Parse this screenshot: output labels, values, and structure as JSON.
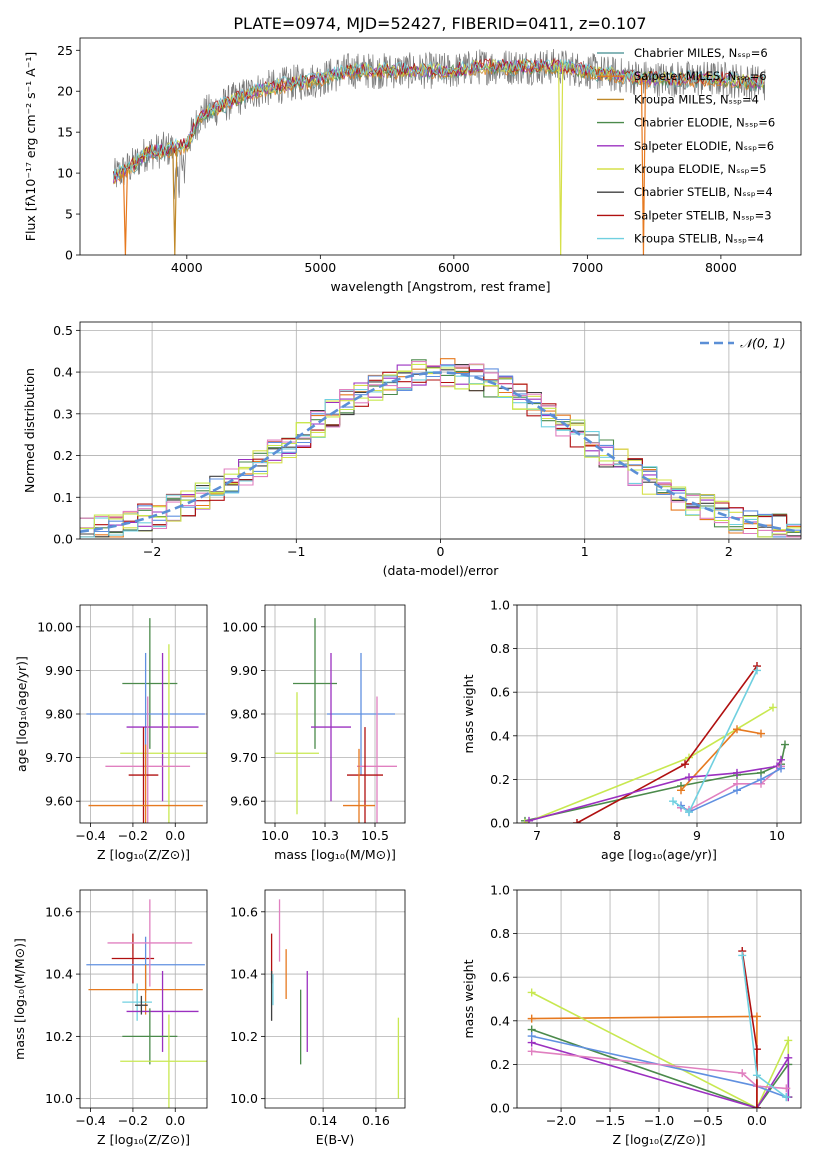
{
  "figure": {
    "title": "PLATE=0974, MJD=52427, FIBERID=0411, z=0.107"
  },
  "colors": [
    "#5f9ea0",
    "#e6791f",
    "#c0892a",
    "#4b8a4b",
    "#9b30c0",
    "#d6e04a",
    "#404040",
    "#b01010",
    "#70d0e0",
    "#6090e0",
    "#e080c0",
    "#c8e850"
  ],
  "chart_data": [
    {
      "id": "spectrum",
      "type": "line",
      "xlabel": "wavelength [Angstrom, rest frame]",
      "ylabel": "Flux [fλ10⁻¹⁷ erg cm⁻² s⁻¹ A⁻¹]",
      "xlim": [
        3200,
        8600
      ],
      "ylim": [
        0,
        26.5
      ],
      "xticks": [
        4000,
        5000,
        6000,
        7000,
        8000
      ],
      "yticks": [
        0,
        5,
        10,
        15,
        20,
        25
      ],
      "legend_position": "right",
      "legend": [
        {
          "label": "Chabrier MILES, Nₛₛₚ=6",
          "color": "#5f9ea0"
        },
        {
          "label": "Salpeter MILES, Nₛₛₚ=6",
          "color": "#e6791f"
        },
        {
          "label": "Kroupa MILES, Nₛₛₚ=4",
          "color": "#c0892a"
        },
        {
          "label": "Chabrier ELODIE, Nₛₛₚ=6",
          "color": "#4b8a4b"
        },
        {
          "label": "Salpeter ELODIE, Nₛₛₚ=6",
          "color": "#9b30c0"
        },
        {
          "label": "Kroupa ELODIE, Nₛₛₚ=5",
          "color": "#d6e04a"
        },
        {
          "label": "Chabrier STELIB, Nₛₛₚ=4",
          "color": "#404040"
        },
        {
          "label": "Salpeter STELIB, Nₛₛₚ=3",
          "color": "#b01010"
        },
        {
          "label": "Kroupa STELIB, Nₛₛₚ=4",
          "color": "#70d0e0"
        }
      ],
      "continuum": [
        [
          3450,
          9.5
        ],
        [
          3600,
          11
        ],
        [
          3700,
          12.5
        ],
        [
          3900,
          13
        ],
        [
          4000,
          13.5
        ],
        [
          4100,
          17
        ],
        [
          4300,
          18.5
        ],
        [
          4500,
          20
        ],
        [
          4800,
          21
        ],
        [
          5000,
          21.5
        ],
        [
          5200,
          22.5
        ],
        [
          5500,
          22.5
        ],
        [
          5800,
          22.5
        ],
        [
          6000,
          22.5
        ],
        [
          6200,
          23
        ],
        [
          6500,
          23
        ],
        [
          6800,
          23
        ],
        [
          7000,
          22.5
        ],
        [
          7200,
          22
        ],
        [
          7500,
          21.5
        ],
        [
          8000,
          21.5
        ],
        [
          8300,
          21
        ]
      ],
      "dips": [
        {
          "x": 3540,
          "y": 0,
          "series": 1
        },
        {
          "x": 3910,
          "y": 0,
          "series": 2
        },
        {
          "x": 6800,
          "y": 0,
          "series": 5
        },
        {
          "x": 7420,
          "y": 0,
          "series": 1
        }
      ]
    },
    {
      "id": "residuals",
      "type": "bar",
      "xlabel": "(data-model)/error",
      "ylabel": "Normed distribution",
      "xlim": [
        -2.5,
        2.5
      ],
      "ylim": [
        0,
        0.52
      ],
      "xticks": [
        -2,
        -1,
        0,
        1,
        2
      ],
      "yticks": [
        0.0,
        0.1,
        0.2,
        0.3,
        0.4,
        0.5
      ],
      "legend_position": "top-right",
      "legend": [
        {
          "label": "𝒩(0, 1)",
          "color": "#5b8fd6"
        }
      ],
      "bin_width": 0.1
    },
    {
      "id": "age-vs-Z",
      "type": "scatter",
      "xlabel": "Z [log₁₀(Z/Z⊙)]",
      "ylabel": "age  [log₁₀(age/yr)]",
      "xlim": [
        -0.45,
        0.15
      ],
      "ylim": [
        9.55,
        10.05
      ],
      "xticks": [
        -0.4,
        -0.2,
        0.0
      ],
      "yticks": [
        9.6,
        9.7,
        9.8,
        9.9,
        10.0
      ],
      "errorbars": [
        {
          "x": -0.12,
          "xerr": 0.13,
          "y": 9.87,
          "yerr": 0.15,
          "color": "#4b8a4b"
        },
        {
          "x": -0.14,
          "xerr": 0.28,
          "y": 9.8,
          "yerr": 0.14,
          "color": "#6090e0"
        },
        {
          "x": -0.06,
          "xerr": 0.17,
          "y": 9.77,
          "yerr": 0.17,
          "color": "#9b30c0"
        },
        {
          "x": -0.03,
          "xerr": 0.23,
          "y": 9.71,
          "yerr": 0.25,
          "color": "#c8e850"
        },
        {
          "x": -0.13,
          "xerr": 0.2,
          "y": 9.68,
          "yerr": 0.16,
          "color": "#e080c0"
        },
        {
          "x": -0.15,
          "xerr": 0.07,
          "y": 9.66,
          "yerr": 0.11,
          "color": "#b01010"
        },
        {
          "x": -0.14,
          "xerr": 0.27,
          "y": 9.59,
          "yerr": 0.14,
          "color": "#e6791f"
        }
      ]
    },
    {
      "id": "age-vs-mass",
      "type": "scatter",
      "xlabel": "mass [log₁₀(M/M⊙)]",
      "ylabel": "",
      "xlim": [
        9.95,
        10.65
      ],
      "ylim": [
        9.55,
        10.05
      ],
      "xticks": [
        10.0,
        10.25,
        10.5
      ],
      "yticks": [
        9.6,
        9.7,
        9.8,
        9.9,
        10.0
      ],
      "errorbars": [
        {
          "x": 10.2,
          "xerr": 0.11,
          "y": 9.87,
          "yerr": 0.15,
          "color": "#4b8a4b"
        },
        {
          "x": 10.43,
          "xerr": 0.17,
          "y": 9.8,
          "yerr": 0.14,
          "color": "#6090e0"
        },
        {
          "x": 10.28,
          "xerr": 0.1,
          "y": 9.77,
          "yerr": 0.17,
          "color": "#9b30c0"
        },
        {
          "x": 10.11,
          "xerr": 0.11,
          "y": 9.71,
          "yerr": 0.14,
          "color": "#c8e850"
        },
        {
          "x": 10.51,
          "xerr": 0.1,
          "y": 9.68,
          "yerr": 0.16,
          "color": "#e080c0"
        },
        {
          "x": 10.45,
          "xerr": 0.09,
          "y": 9.66,
          "yerr": 0.11,
          "color": "#b01010"
        },
        {
          "x": 10.42,
          "xerr": 0.08,
          "y": 9.59,
          "yerr": 0.13,
          "color": "#e6791f"
        }
      ]
    },
    {
      "id": "mass-weight-vs-age",
      "type": "line",
      "xlabel": "age  [log₁₀(age/yr)]",
      "ylabel": "mass weight",
      "xlim": [
        6.75,
        10.3
      ],
      "ylim": [
        0,
        1.0
      ],
      "xticks": [
        7,
        8,
        9,
        10
      ],
      "yticks": [
        0.0,
        0.2,
        0.4,
        0.6,
        0.8,
        1.0
      ],
      "series": [
        {
          "color": "#4b8a4b",
          "points": [
            [
              6.85,
              0.01
            ],
            [
              8.8,
              0.17
            ],
            [
              9.5,
              0.22
            ],
            [
              9.8,
              0.23
            ],
            [
              10.05,
              0.27
            ],
            [
              10.1,
              0.36
            ]
          ]
        },
        {
          "color": "#c8e850",
          "points": [
            [
              6.85,
              0.0
            ],
            [
              8.9,
              0.3
            ],
            [
              9.95,
              0.53
            ]
          ]
        },
        {
          "color": "#e6791f",
          "points": [
            [
              8.8,
              0.15
            ],
            [
              9.5,
              0.43
            ],
            [
              9.8,
              0.41
            ]
          ]
        },
        {
          "color": "#b01010",
          "points": [
            [
              7.5,
              0.0
            ],
            [
              8.85,
              0.27
            ],
            [
              9.75,
              0.72
            ]
          ]
        },
        {
          "color": "#9b30c0",
          "points": [
            [
              6.9,
              0.01
            ],
            [
              8.9,
              0.21
            ],
            [
              9.5,
              0.23
            ],
            [
              10.0,
              0.26
            ],
            [
              10.05,
              0.29
            ]
          ]
        },
        {
          "color": "#e080c0",
          "points": [
            [
              8.8,
              0.07
            ],
            [
              8.9,
              0.06
            ],
            [
              9.5,
              0.18
            ],
            [
              9.8,
              0.18
            ],
            [
              10.05,
              0.26
            ]
          ]
        },
        {
          "color": "#6090e0",
          "points": [
            [
              8.8,
              0.08
            ],
            [
              8.9,
              0.05
            ],
            [
              9.5,
              0.15
            ],
            [
              9.8,
              0.2
            ],
            [
              10.05,
              0.25
            ]
          ]
        },
        {
          "color": "#70d0e0",
          "points": [
            [
              8.7,
              0.1
            ],
            [
              8.9,
              0.05
            ],
            [
              9.75,
              0.7
            ]
          ]
        }
      ]
    },
    {
      "id": "mass-vs-Z",
      "type": "scatter",
      "xlabel": "Z [log₁₀(Z/Z⊙)]",
      "ylabel": "mass [log₁₀(M/M⊙)]",
      "xlim": [
        -0.45,
        0.15
      ],
      "ylim": [
        9.97,
        10.67
      ],
      "xticks": [
        -0.4,
        -0.2,
        0.0
      ],
      "yticks": [
        10.0,
        10.2,
        10.4,
        10.6
      ],
      "errorbars": [
        {
          "x": -0.2,
          "xerr": 0.1,
          "y": 10.45,
          "yerr": 0.08,
          "color": "#b01010"
        },
        {
          "x": -0.14,
          "xerr": 0.28,
          "y": 10.43,
          "yerr": 0.09,
          "color": "#6090e0"
        },
        {
          "x": -0.12,
          "xerr": 0.2,
          "y": 10.5,
          "yerr": 0.14,
          "color": "#e080c0"
        },
        {
          "x": -0.14,
          "xerr": 0.27,
          "y": 10.35,
          "yerr": 0.08,
          "color": "#e6791f"
        },
        {
          "x": -0.18,
          "xerr": 0.07,
          "y": 10.31,
          "yerr": 0.06,
          "color": "#70d0e0"
        },
        {
          "x": -0.06,
          "xerr": 0.17,
          "y": 10.28,
          "yerr": 0.13,
          "color": "#9b30c0"
        },
        {
          "x": -0.12,
          "xerr": 0.13,
          "y": 10.2,
          "yerr": 0.09,
          "color": "#4b8a4b"
        },
        {
          "x": -0.03,
          "xerr": 0.23,
          "y": 10.12,
          "yerr": 0.15,
          "color": "#c8e850"
        },
        {
          "x": -0.16,
          "xerr": 0.03,
          "y": 10.3,
          "yerr": 0.03,
          "color": "#404040"
        }
      ]
    },
    {
      "id": "mass-vs-ebv",
      "type": "scatter",
      "xlabel": "E(B-V)",
      "ylabel": "",
      "xlim": [
        0.118,
        0.171
      ],
      "ylim": [
        9.97,
        10.67
      ],
      "xticks": [
        0.14,
        0.16
      ],
      "yticks": [
        10.0,
        10.2,
        10.4,
        10.6
      ],
      "errorbars": [
        {
          "x": 0.1205,
          "y": 10.45,
          "yerr": 0.08,
          "color": "#b01010"
        },
        {
          "x": 0.1205,
          "y": 10.33,
          "yerr": 0.08,
          "color": "#404040"
        },
        {
          "x": 0.121,
          "y": 10.35,
          "yerr": 0.05,
          "color": "#70d0e0"
        },
        {
          "x": 0.1235,
          "y": 10.54,
          "yerr": 0.1,
          "color": "#e080c0"
        },
        {
          "x": 0.126,
          "y": 10.4,
          "yerr": 0.08,
          "color": "#e6791f"
        },
        {
          "x": 0.1315,
          "y": 10.23,
          "yerr": 0.12,
          "color": "#4b8a4b"
        },
        {
          "x": 0.134,
          "y": 10.28,
          "yerr": 0.13,
          "color": "#9b30c0"
        },
        {
          "x": 0.1685,
          "y": 10.13,
          "yerr": 0.13,
          "color": "#c8e850"
        }
      ]
    },
    {
      "id": "mass-weight-vs-Z",
      "type": "line",
      "xlabel": "Z [log₁₀(Z/Z⊙)]",
      "ylabel": "mass weight",
      "xlim": [
        -2.45,
        0.45
      ],
      "ylim": [
        0,
        1.0
      ],
      "xticks": [
        -2.0,
        -1.5,
        -1.0,
        -0.5,
        0.0
      ],
      "yticks": [
        0.0,
        0.2,
        0.4,
        0.6,
        0.8,
        1.0
      ],
      "series": [
        {
          "color": "#e6791f",
          "points": [
            [
              -2.3,
              0.41
            ],
            [
              0.0,
              0.42
            ],
            [
              0.0,
              0.0
            ]
          ]
        },
        {
          "color": "#c8e850",
          "points": [
            [
              -2.3,
              0.53
            ],
            [
              0.0,
              0.0
            ],
            [
              0.32,
              0.31
            ],
            [
              0.32,
              0.05
            ]
          ]
        },
        {
          "color": "#4b8a4b",
          "points": [
            [
              -2.3,
              0.36
            ],
            [
              0.0,
              0.0
            ],
            [
              0.32,
              0.2
            ],
            [
              0.32,
              0.05
            ]
          ]
        },
        {
          "color": "#9b30c0",
          "points": [
            [
              -2.3,
              0.3
            ],
            [
              0.0,
              0.0
            ],
            [
              0.32,
              0.23
            ],
            [
              0.32,
              0.05
            ]
          ]
        },
        {
          "color": "#6090e0",
          "points": [
            [
              -2.3,
              0.33
            ],
            [
              0.0,
              0.1
            ],
            [
              0.3,
              0.05
            ]
          ]
        },
        {
          "color": "#e080c0",
          "points": [
            [
              -2.3,
              0.26
            ],
            [
              -0.15,
              0.16
            ],
            [
              0.0,
              0.1
            ],
            [
              0.3,
              0.09
            ]
          ]
        },
        {
          "color": "#b01010",
          "points": [
            [
              -0.15,
              0.72
            ],
            [
              0.0,
              0.27
            ],
            [
              0.0,
              0.0
            ]
          ]
        },
        {
          "color": "#70d0e0",
          "points": [
            [
              -0.15,
              0.7
            ],
            [
              0.0,
              0.15
            ],
            [
              0.3,
              0.05
            ]
          ]
        }
      ]
    }
  ]
}
